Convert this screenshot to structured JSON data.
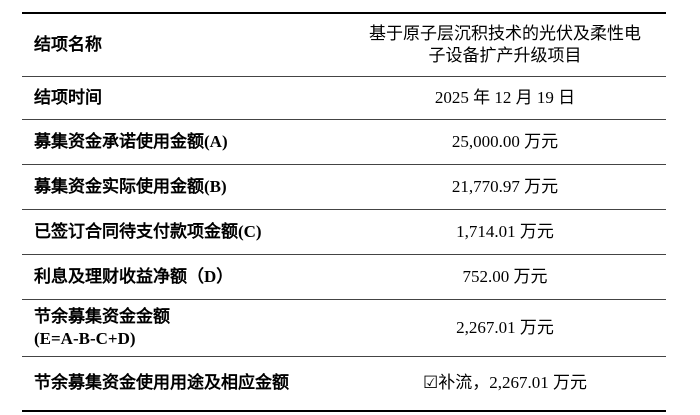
{
  "table": {
    "rows": [
      [
        "结项名称",
        "基于原子层沉积技术的光伏及柔性电子设备扩产升级项目"
      ],
      [
        "结项时间",
        "2025 年 12 月 19 日"
      ],
      [
        "募集资金承诺使用金额(A)",
        "25,000.00 万元"
      ],
      [
        "募集资金实际使用金额(B)",
        "21,770.97 万元"
      ],
      [
        "已签订合同待支付款项金额(C)",
        "1,714.01 万元"
      ],
      [
        "利息及理财收益净额（D）",
        "752.00 万元"
      ],
      [
        "节余募集资金金额\n(E=A-B-C+D)",
        "2,267.01 万元"
      ],
      [
        "节余募集资金使用用途及相应金额",
        "☑补流，2,267.01 万元"
      ]
    ]
  }
}
